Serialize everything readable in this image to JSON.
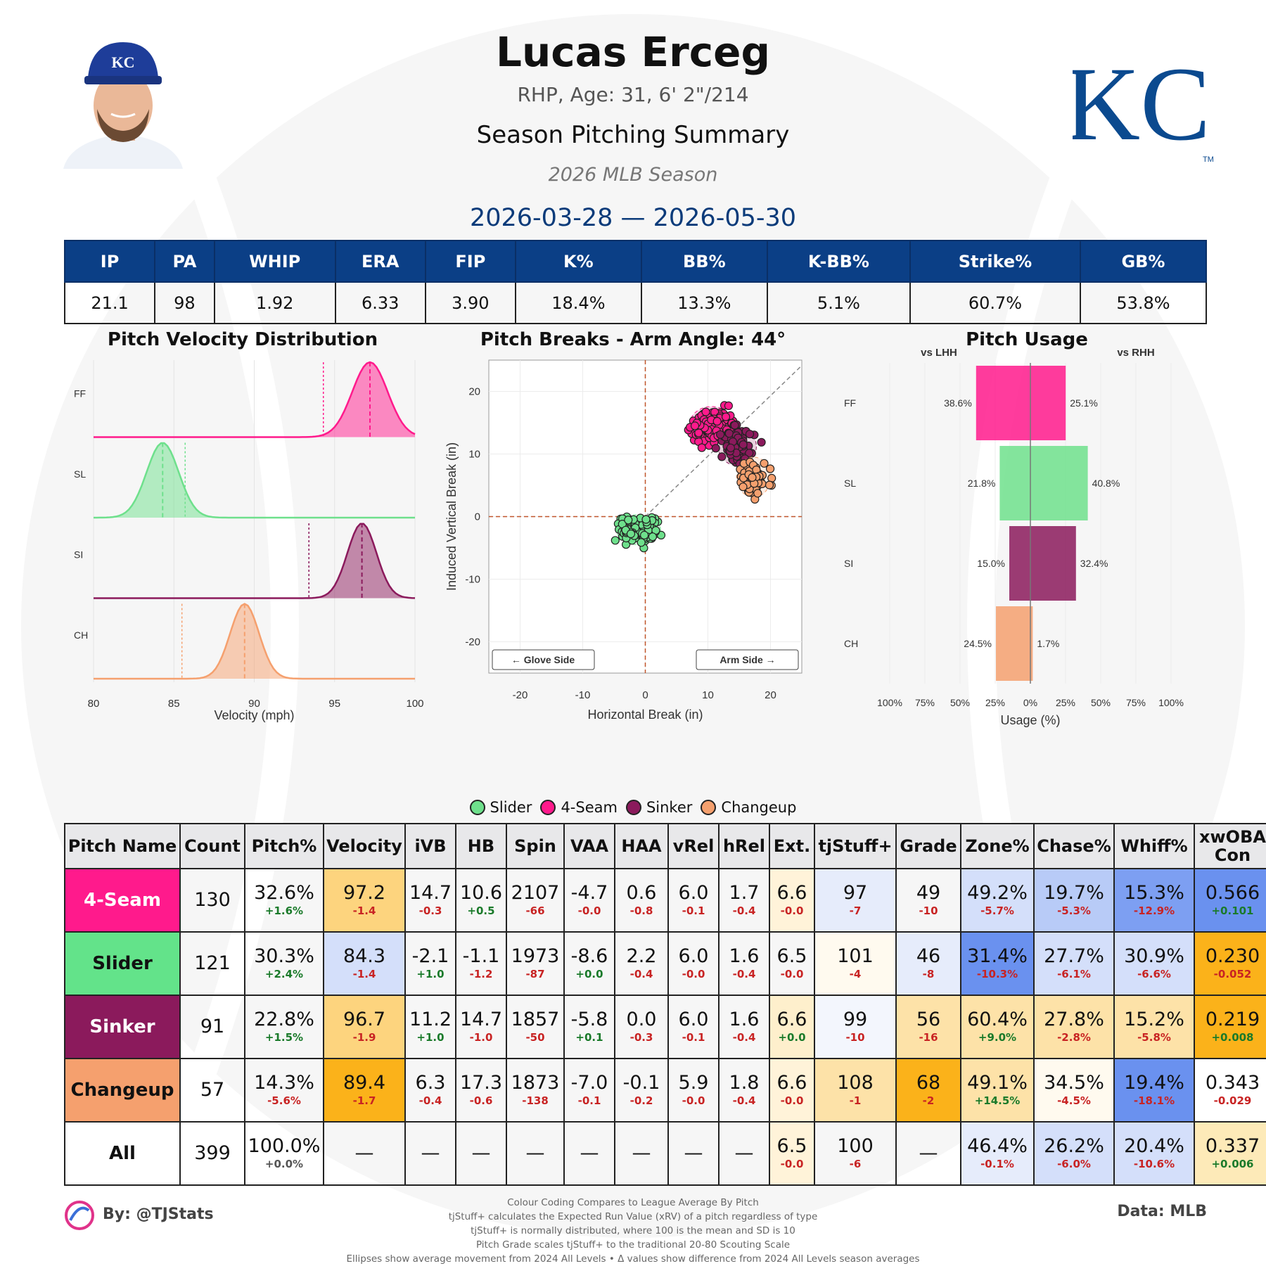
{
  "header": {
    "name": "Lucas Erceg",
    "bio": "RHP, Age: 31, 6' 2\"/214",
    "subtitle": "Season Pitching Summary",
    "season": "2026 MLB Season",
    "dates": "2026-03-28 — 2026-05-30",
    "logo_text": "KC",
    "logo_tm": "TM",
    "cap_letters": "KC"
  },
  "colors": {
    "navy": "#0b3f86",
    "fourseam": "#ff1a8c",
    "slider": "#6ee08c",
    "sinker": "#8b1a5c",
    "changeup": "#f5a06e",
    "guide": "#c0562b"
  },
  "season_stats": {
    "headers": [
      "IP",
      "PA",
      "WHIP",
      "ERA",
      "FIP",
      "K%",
      "BB%",
      "K-BB%",
      "Strike%",
      "GB%"
    ],
    "values": [
      "21.1",
      "98",
      "1.92",
      "6.33",
      "3.90",
      "18.4%",
      "13.3%",
      "5.1%",
      "60.7%",
      "53.8%"
    ]
  },
  "chart_data": [
    {
      "type": "area",
      "title": "Pitch Velocity Distribution",
      "xlabel": "Velocity (mph)",
      "xlim": [
        80,
        100
      ],
      "xticks": [
        80,
        85,
        90,
        95,
        100
      ],
      "series": [
        {
          "name": "FF",
          "mean": 97.2,
          "league_mean": 94.3,
          "peak": 97.2,
          "spread": 1.1
        },
        {
          "name": "SL",
          "mean": 84.3,
          "league_mean": 85.7,
          "peak": 84.3,
          "spread": 1.0
        },
        {
          "name": "SI",
          "mean": 96.7,
          "league_mean": 93.4,
          "peak": 96.7,
          "spread": 0.9
        },
        {
          "name": "CH",
          "mean": 89.4,
          "league_mean": 85.5,
          "peak": 89.4,
          "spread": 0.9
        }
      ]
    },
    {
      "type": "scatter",
      "title": "Pitch Breaks - Arm Angle: 44°",
      "xlabel": "Horizontal Break (in)",
      "ylabel": "Induced Vertical Break (in)",
      "xlim": [
        -25,
        25
      ],
      "ylim": [
        -25,
        25
      ],
      "xticks": [
        -20,
        -10,
        0,
        10,
        20
      ],
      "yticks": [
        -20,
        -10,
        0,
        10,
        20
      ],
      "arm_angle_deg": 44,
      "annotations": [
        "← Glove Side",
        "Arm Side →"
      ],
      "clusters": [
        {
          "name": "4-Seam",
          "hb_mean": 10.6,
          "ivb_mean": 14.7,
          "hb_sd": 2.2,
          "ivb_sd": 1.8,
          "n": 130
        },
        {
          "name": "Slider",
          "hb_mean": -1.1,
          "ivb_mean": -2.1,
          "hb_sd": 2.2,
          "ivb_sd": 1.5,
          "n": 121
        },
        {
          "name": "Sinker",
          "hb_mean": 14.7,
          "ivb_mean": 11.2,
          "hb_sd": 1.9,
          "ivb_sd": 1.9,
          "n": 91
        },
        {
          "name": "Changeup",
          "hb_mean": 17.3,
          "ivb_mean": 6.3,
          "hb_sd": 1.7,
          "ivb_sd": 2.0,
          "n": 57
        }
      ]
    },
    {
      "type": "bar",
      "title": "Pitch Usage",
      "xlabel": "Usage (%)",
      "left_label": "vs LHH",
      "right_label": "vs RHH",
      "categories": [
        "FF",
        "SL",
        "SI",
        "CH"
      ],
      "xticks": [
        "100%",
        "75%",
        "50%",
        "25%",
        "0%",
        "25%",
        "50%",
        "75%",
        "100%"
      ],
      "series": [
        {
          "name": "vs LHH",
          "values": [
            38.6,
            21.8,
            15.0,
            24.5
          ],
          "labels": [
            "38.6%",
            "21.8%",
            "15.0%",
            "24.5%"
          ]
        },
        {
          "name": "vs RHH",
          "values": [
            25.1,
            40.8,
            32.4,
            1.7
          ],
          "labels": [
            "25.1%",
            "40.8%",
            "32.4%",
            "1.7%"
          ]
        }
      ]
    }
  ],
  "legend": [
    "Slider",
    "4-Seam",
    "Sinker",
    "Changeup"
  ],
  "pitch_table": {
    "headers": [
      "Pitch Name",
      "Count",
      "Pitch%",
      "Velocity",
      "iVB",
      "HB",
      "Spin",
      "VAA",
      "HAA",
      "vRel",
      "hRel",
      "Ext.",
      "tjStuff+",
      "Grade",
      "Zone%",
      "Chase%",
      "Whiff%",
      "xwOBA Con"
    ],
    "rows": [
      {
        "name": "4-Seam",
        "name_bg": "#ff1a8c",
        "name_color": "#ffffff",
        "cells": [
          {
            "v": "130"
          },
          {
            "v": "32.6%",
            "d": "+1.6%",
            "dc": "#1a7a2a"
          },
          {
            "v": "97.2",
            "d": "-1.4",
            "dc": "#c82323",
            "bg": "#fdd47e"
          },
          {
            "v": "14.7",
            "d": "-0.3",
            "dc": "#c82323"
          },
          {
            "v": "10.6",
            "d": "+0.5",
            "dc": "#1a7a2a"
          },
          {
            "v": "2107",
            "d": "-66",
            "dc": "#c82323"
          },
          {
            "v": "-4.7",
            "d": "-0.0",
            "dc": "#c82323"
          },
          {
            "v": "0.6",
            "d": "-0.8",
            "dc": "#c82323"
          },
          {
            "v": "6.0",
            "d": "-0.1",
            "dc": "#c82323"
          },
          {
            "v": "1.7",
            "d": "-0.4",
            "dc": "#c82323"
          },
          {
            "v": "6.6",
            "d": "-0.0",
            "dc": "#c82323",
            "bg": "#fff3d9"
          },
          {
            "v": "97",
            "d": "-7",
            "dc": "#c82323",
            "bg": "#e6ecfb"
          },
          {
            "v": "49",
            "d": "-10",
            "dc": "#c82323"
          },
          {
            "v": "49.2%",
            "d": "-5.7%",
            "dc": "#c82323",
            "bg": "#d4dffa"
          },
          {
            "v": "19.7%",
            "d": "-5.3%",
            "dc": "#c82323",
            "bg": "#b8cbf7"
          },
          {
            "v": "15.3%",
            "d": "-12.9%",
            "dc": "#c82323",
            "bg": "#7d9ff2"
          },
          {
            "v": "0.566",
            "d": "+0.101",
            "dc": "#1a7a2a",
            "bg": "#6a91ef"
          }
        ]
      },
      {
        "name": "Slider",
        "name_bg": "#63e38a",
        "name_color": "#111111",
        "cells": [
          {
            "v": "121"
          },
          {
            "v": "30.3%",
            "d": "+2.4%",
            "dc": "#1a7a2a"
          },
          {
            "v": "84.3",
            "d": "-1.4",
            "dc": "#c82323",
            "bg": "#d4dffa"
          },
          {
            "v": "-2.1",
            "d": "+1.0",
            "dc": "#1a7a2a"
          },
          {
            "v": "-1.1",
            "d": "-1.2",
            "dc": "#c82323"
          },
          {
            "v": "1973",
            "d": "-87",
            "dc": "#c82323"
          },
          {
            "v": "-8.6",
            "d": "+0.0",
            "dc": "#1a7a2a"
          },
          {
            "v": "2.2",
            "d": "-0.4",
            "dc": "#c82323"
          },
          {
            "v": "6.0",
            "d": "-0.0",
            "dc": "#c82323"
          },
          {
            "v": "1.6",
            "d": "-0.4",
            "dc": "#c82323"
          },
          {
            "v": "6.5",
            "d": "-0.0",
            "dc": "#c82323"
          },
          {
            "v": "101",
            "d": "-4",
            "dc": "#c82323",
            "bg": "#fffaef"
          },
          {
            "v": "46",
            "d": "-8",
            "dc": "#c82323",
            "bg": "#e6ecfb"
          },
          {
            "v": "31.4%",
            "d": "-10.3%",
            "dc": "#c82323",
            "bg": "#6a91ef"
          },
          {
            "v": "27.7%",
            "d": "-6.1%",
            "dc": "#c82323",
            "bg": "#d4dffa"
          },
          {
            "v": "30.9%",
            "d": "-6.6%",
            "dc": "#c82323",
            "bg": "#d4dffa"
          },
          {
            "v": "0.230",
            "d": "-0.052",
            "dc": "#c82323",
            "bg": "#fbb21a"
          }
        ]
      },
      {
        "name": "Sinker",
        "name_bg": "#8b1a5c",
        "name_color": "#ffffff",
        "cells": [
          {
            "v": "91"
          },
          {
            "v": "22.8%",
            "d": "+1.5%",
            "dc": "#1a7a2a"
          },
          {
            "v": "96.7",
            "d": "-1.9",
            "dc": "#c82323",
            "bg": "#fdd47e"
          },
          {
            "v": "11.2",
            "d": "+1.0",
            "dc": "#1a7a2a"
          },
          {
            "v": "14.7",
            "d": "-1.0",
            "dc": "#c82323"
          },
          {
            "v": "1857",
            "d": "-50",
            "dc": "#c82323"
          },
          {
            "v": "-5.8",
            "d": "+0.1",
            "dc": "#1a7a2a"
          },
          {
            "v": "0.0",
            "d": "-0.3",
            "dc": "#c82323"
          },
          {
            "v": "6.0",
            "d": "-0.1",
            "dc": "#c82323"
          },
          {
            "v": "1.6",
            "d": "-0.4",
            "dc": "#c82323"
          },
          {
            "v": "6.6",
            "d": "+0.0",
            "dc": "#1a7a2a",
            "bg": "#feefcc"
          },
          {
            "v": "99",
            "d": "-10",
            "dc": "#c82323",
            "bg": "#f3f6fd"
          },
          {
            "v": "56",
            "d": "-16",
            "dc": "#c82323",
            "bg": "#fde2a8"
          },
          {
            "v": "60.4%",
            "d": "+9.0%",
            "dc": "#1a7a2a",
            "bg": "#fde2a8"
          },
          {
            "v": "27.8%",
            "d": "-2.8%",
            "dc": "#c82323",
            "bg": "#fde2a8"
          },
          {
            "v": "15.2%",
            "d": "-5.8%",
            "dc": "#c82323",
            "bg": "#fde2a8"
          },
          {
            "v": "0.219",
            "d": "+0.008",
            "dc": "#1a7a2a",
            "bg": "#fbb21a"
          }
        ]
      },
      {
        "name": "Changeup",
        "name_bg": "#f5a06e",
        "name_color": "#111111",
        "cells": [
          {
            "v": "57"
          },
          {
            "v": "14.3%",
            "d": "-5.6%",
            "dc": "#c82323"
          },
          {
            "v": "89.4",
            "d": "-1.7",
            "dc": "#c82323",
            "bg": "#fbb21a"
          },
          {
            "v": "6.3",
            "d": "-0.4",
            "dc": "#c82323"
          },
          {
            "v": "17.3",
            "d": "-0.6",
            "dc": "#c82323"
          },
          {
            "v": "1873",
            "d": "-138",
            "dc": "#c82323"
          },
          {
            "v": "-7.0",
            "d": "-0.1",
            "dc": "#c82323"
          },
          {
            "v": "-0.1",
            "d": "-0.2",
            "dc": "#c82323"
          },
          {
            "v": "5.9",
            "d": "-0.0",
            "dc": "#c82323"
          },
          {
            "v": "1.8",
            "d": "-0.4",
            "dc": "#c82323"
          },
          {
            "v": "6.6",
            "d": "-0.0",
            "dc": "#c82323",
            "bg": "#fff3d9"
          },
          {
            "v": "108",
            "d": "-1",
            "dc": "#c82323",
            "bg": "#fde2a8"
          },
          {
            "v": "68",
            "d": "-2",
            "dc": "#c82323",
            "bg": "#fbb21a"
          },
          {
            "v": "49.1%",
            "d": "+14.5%",
            "dc": "#1a7a2a",
            "bg": "#fde2a8"
          },
          {
            "v": "34.5%",
            "d": "-4.5%",
            "dc": "#c82323",
            "bg": "#fffaef"
          },
          {
            "v": "19.4%",
            "d": "-18.1%",
            "dc": "#c82323",
            "bg": "#6a91ef"
          },
          {
            "v": "0.343",
            "d": "-0.029",
            "dc": "#c82323"
          }
        ]
      },
      {
        "name": "All",
        "name_bg": "#ffffff",
        "name_color": "#111111",
        "cells": [
          {
            "v": "399"
          },
          {
            "v": "100.0%",
            "d": "+0.0%",
            "dc": "#555555"
          },
          {
            "v": "—"
          },
          {
            "v": "—"
          },
          {
            "v": "—"
          },
          {
            "v": "—"
          },
          {
            "v": "—"
          },
          {
            "v": "—"
          },
          {
            "v": "—"
          },
          {
            "v": "—"
          },
          {
            "v": "6.5",
            "d": "-0.0",
            "dc": "#c82323",
            "bg": "#fff3d9"
          },
          {
            "v": "100",
            "d": "-6",
            "dc": "#c82323"
          },
          {
            "v": "—"
          },
          {
            "v": "46.4%",
            "d": "-0.1%",
            "dc": "#c82323",
            "bg": "#e6ecfb"
          },
          {
            "v": "26.2%",
            "d": "-6.0%",
            "dc": "#c82323",
            "bg": "#d4dffa"
          },
          {
            "v": "20.4%",
            "d": "-10.6%",
            "dc": "#c82323",
            "bg": "#d4dffa"
          },
          {
            "v": "0.337",
            "d": "+0.006",
            "dc": "#1a7a2a",
            "bg": "#fdeab8"
          }
        ]
      }
    ]
  },
  "footer": {
    "credit": "By: @TJStats",
    "data_source": "Data: MLB",
    "notes": [
      "Colour Coding Compares to League Average By Pitch",
      "tjStuff+ calculates the Expected Run Value (xRV) of a pitch regardless of type",
      "tjStuff+ is normally distributed, where 100 is the mean and SD is 10",
      "Pitch Grade scales tjStuff+ to the traditional 20-80 Scouting Scale",
      "Ellipses show average movement from 2024 All Levels • Δ values show difference from 2024 All Levels season averages"
    ]
  }
}
